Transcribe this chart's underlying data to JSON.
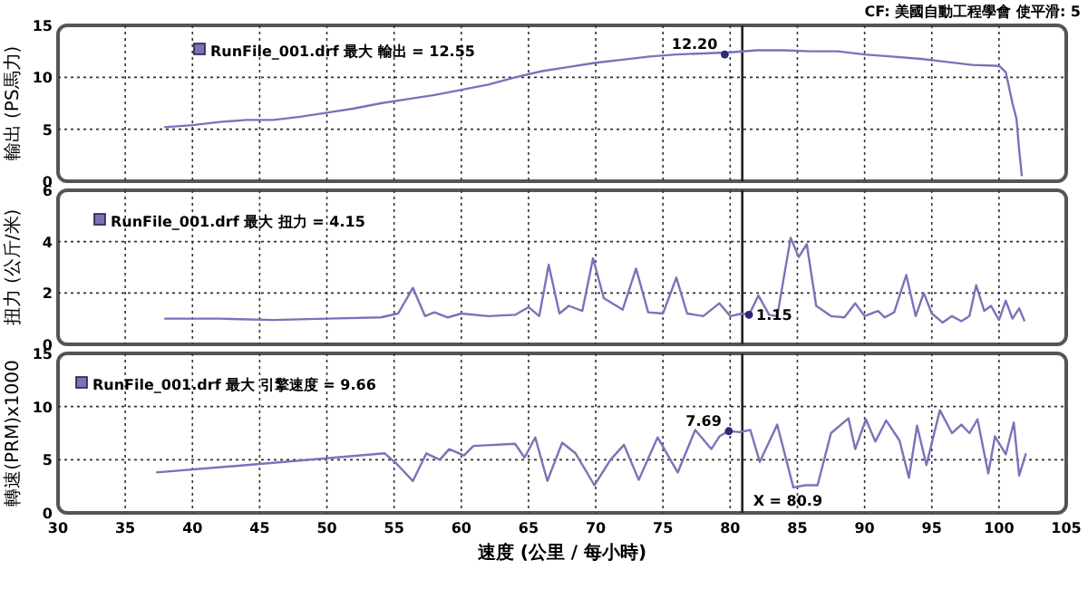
{
  "chart_data": [
    {
      "type": "line",
      "ylabel": "輸出 (PS馬力)",
      "xlim": [
        30,
        105
      ],
      "xticks": [
        30,
        35,
        40,
        45,
        50,
        55,
        60,
        65,
        70,
        75,
        80,
        85,
        90,
        95,
        100,
        105
      ],
      "ylim": [
        0,
        15
      ],
      "yticks": [
        0,
        5,
        10,
        15
      ],
      "grid": true,
      "legend": "top left",
      "tick_labels": "y",
      "annotations": [
        "CF: 美國自動工程學會 使平滑: 5",
        {
          "text": "12.20",
          "x": 79.6,
          "y": 12.2
        }
      ],
      "ref_lines": [
        {
          "axis": "x",
          "value": 80.9
        }
      ],
      "series": [
        {
          "name": "RunFile_001.drf 最大 輸出 = 12.55",
          "color": "#7b72b8",
          "x": [
            37.9,
            40,
            42,
            44,
            46,
            48,
            50,
            52,
            54,
            56,
            58,
            60,
            62,
            64,
            66,
            68,
            70,
            72,
            74,
            76,
            78,
            80,
            82,
            84,
            86,
            88,
            90,
            92,
            94,
            96,
            98,
            100,
            100.5,
            101,
            101.3,
            101.5,
            101.7
          ],
          "values": [
            5.2,
            5.4,
            5.7,
            5.9,
            5.9,
            6.2,
            6.6,
            7.0,
            7.5,
            7.9,
            8.3,
            8.8,
            9.3,
            10.0,
            10.6,
            11.0,
            11.4,
            11.7,
            12.0,
            12.2,
            12.3,
            12.4,
            12.6,
            12.6,
            12.5,
            12.5,
            12.2,
            12.0,
            11.8,
            11.5,
            11.2,
            11.1,
            10.5,
            7.5,
            6.0,
            3.0,
            0.5
          ]
        }
      ]
    },
    {
      "type": "line",
      "ylabel": "扭力 (公斤/米)",
      "xlim": [
        30,
        105
      ],
      "xticks": [
        30,
        35,
        40,
        45,
        50,
        55,
        60,
        65,
        70,
        75,
        80,
        85,
        90,
        95,
        100,
        105
      ],
      "ylim": [
        0,
        6
      ],
      "yticks": [
        0,
        2,
        4,
        6
      ],
      "grid": true,
      "legend": "top left",
      "tick_labels": "y",
      "annotations": [
        {
          "text": "1.15",
          "x": 81.4,
          "y": 1.15
        }
      ],
      "ref_lines": [
        {
          "axis": "x",
          "value": 80.9
        }
      ],
      "series": [
        {
          "name": "RunFile_001.drf 最大 扭力 = 4.15",
          "color": "#7b72b8",
          "x": [
            37.9,
            42,
            46,
            50,
            54,
            55.3,
            56.4,
            57.3,
            58,
            59,
            60,
            62,
            64,
            65,
            65.8,
            66.5,
            67.3,
            68,
            69,
            69.8,
            70.6,
            72,
            73,
            73.9,
            75,
            76,
            76.8,
            78,
            79.2,
            80,
            80.9,
            81.4,
            82.1,
            82.9,
            83.5,
            84.5,
            85.1,
            85.7,
            86.4,
            87.5,
            88.5,
            89.3,
            90,
            91,
            91.5,
            92.2,
            93.1,
            93.8,
            94.4,
            95,
            95.8,
            96.5,
            97.2,
            97.8,
            98.3,
            98.9,
            99.4,
            100,
            100.5,
            101,
            101.5,
            101.9
          ],
          "values": [
            1.0,
            1.0,
            0.95,
            1.0,
            1.05,
            1.2,
            2.2,
            1.1,
            1.25,
            1.05,
            1.2,
            1.1,
            1.15,
            1.45,
            1.1,
            3.1,
            1.2,
            1.5,
            1.3,
            3.35,
            1.8,
            1.35,
            2.95,
            1.25,
            1.2,
            2.6,
            1.2,
            1.1,
            1.6,
            1.1,
            1.2,
            1.15,
            1.9,
            1.15,
            1.1,
            4.15,
            3.4,
            3.9,
            1.5,
            1.1,
            1.05,
            1.6,
            1.1,
            1.3,
            1.05,
            1.25,
            2.7,
            1.1,
            2.0,
            1.2,
            0.85,
            1.1,
            0.9,
            1.1,
            2.3,
            1.3,
            1.5,
            0.95,
            1.7,
            1.0,
            1.4,
            0.9
          ]
        }
      ]
    },
    {
      "type": "line",
      "ylabel": "轉速(PRM)x1000",
      "xlabel": "速度 (公里 / 每小時)",
      "xlim": [
        30,
        105
      ],
      "xticks": [
        30,
        35,
        40,
        45,
        50,
        55,
        60,
        65,
        70,
        75,
        80,
        85,
        90,
        95,
        100,
        105
      ],
      "ylim": [
        0,
        15
      ],
      "yticks": [
        0,
        5,
        10,
        15
      ],
      "grid": true,
      "legend": "top left",
      "annotations": [
        {
          "text": "7.69",
          "x": 79.9,
          "y": 7.69
        }
      ],
      "ref_lines": [
        {
          "axis": "x",
          "value": 80.9,
          "label": "X = 80.9"
        }
      ],
      "series": [
        {
          "name": "RunFile_001.drf 最大 引擎速度 = 9.66",
          "color": "#7b72b8",
          "x": [
            37.3,
            45,
            54.3,
            55.2,
            56.4,
            57.4,
            58.4,
            59.1,
            60.2,
            60.9,
            64.0,
            64.7,
            65.5,
            66.4,
            67.5,
            68.5,
            69.9,
            71.1,
            72.1,
            73.2,
            74.6,
            76.1,
            77.4,
            78.6,
            79.2,
            79.9,
            80.7,
            81.5,
            82.2,
            83.5,
            84.7,
            85.6,
            86.5,
            87.5,
            88.8,
            89.3,
            90.1,
            90.8,
            91.6,
            92.6,
            93.3,
            93.9,
            94.6,
            95.6,
            96.5,
            97.2,
            97.8,
            98.4,
            99.2,
            99.7,
            100.5,
            101.1,
            101.5,
            102.0
          ],
          "values": [
            3.8,
            4.6,
            5.6,
            4.6,
            3.0,
            5.6,
            5.0,
            6.0,
            5.4,
            6.3,
            6.5,
            5.2,
            7.1,
            3.0,
            6.6,
            5.6,
            2.6,
            5.0,
            6.4,
            3.1,
            7.1,
            3.8,
            7.8,
            6.0,
            7.2,
            7.7,
            7.6,
            7.8,
            4.8,
            8.3,
            2.4,
            2.6,
            2.6,
            7.5,
            8.9,
            6.0,
            8.8,
            6.7,
            8.7,
            6.8,
            3.3,
            8.2,
            4.5,
            9.66,
            7.5,
            8.3,
            7.5,
            8.8,
            3.7,
            7.2,
            5.5,
            8.5,
            3.5,
            5.6
          ]
        }
      ]
    }
  ]
}
